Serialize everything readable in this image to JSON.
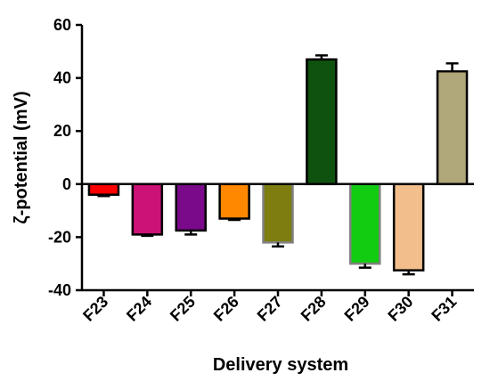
{
  "chart_data": {
    "type": "bar",
    "xlabel": "Delivery system",
    "ylabel": "ζ-potential (mV)",
    "ylim": [
      -40,
      60
    ],
    "yticks": [
      -40,
      -20,
      0,
      20,
      40,
      60
    ],
    "grid": false,
    "categories": [
      "F23",
      "F24",
      "F25",
      "F26",
      "F27",
      "F28",
      "F29",
      "F30",
      "F31"
    ],
    "values": [
      -4,
      -19,
      -17.5,
      -13,
      -22,
      47,
      -30,
      -32.5,
      42.5
    ],
    "errors": [
      0.5,
      0.5,
      1.5,
      0.5,
      1.5,
      1.5,
      1.5,
      1.5,
      3
    ],
    "colors": [
      "#ff0000",
      "#cc1177",
      "#7a0a8a",
      "#ff8800",
      "#7d7d10",
      "#0f520f",
      "#11cc11",
      "#f2bf8c",
      "#b0a77a"
    ],
    "strokes": [
      "#000000",
      "#000000",
      "#000000",
      "#000000",
      "#808080",
      "#000000",
      "#808080",
      "#000000",
      "#000000"
    ]
  }
}
